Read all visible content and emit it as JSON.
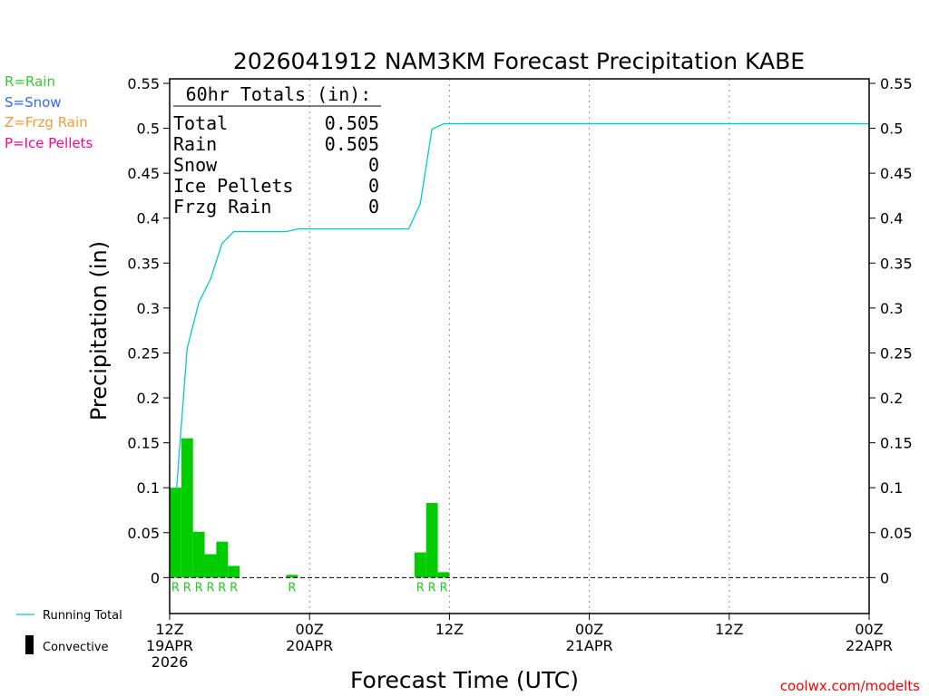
{
  "chart_data": {
    "type": "bar",
    "title": "2026041912 NAM3KM Forecast Precipitation KABE",
    "xlabel": "Forecast Time (UTC)",
    "ylabel": "Precipitation (in)",
    "ylim": [
      -0.04,
      0.555
    ],
    "y_ticks": [
      0,
      0.05,
      0.1,
      0.15,
      0.2,
      0.25,
      0.3,
      0.35,
      0.4,
      0.45,
      0.5,
      0.55
    ],
    "y_tick_labels": [
      "0",
      "0.05",
      "0.1",
      "0.15",
      "0.2",
      "0.25",
      "0.3",
      "0.35",
      "0.4",
      "0.45",
      "0.5",
      "0.55"
    ],
    "x_range_hours": [
      0,
      60
    ],
    "x_ticks": [
      {
        "hour": 0,
        "line1": "12Z",
        "line2": "19APR",
        "line3": "2026"
      },
      {
        "hour": 12,
        "line1": "00Z",
        "line2": "20APR",
        "line3": ""
      },
      {
        "hour": 24,
        "line1": "12Z",
        "line2": "",
        "line3": ""
      },
      {
        "hour": 36,
        "line1": "00Z",
        "line2": "21APR",
        "line3": ""
      },
      {
        "hour": 48,
        "line1": "12Z",
        "line2": "",
        "line3": ""
      },
      {
        "hour": 60,
        "line1": "00Z",
        "line2": "22APR",
        "line3": ""
      }
    ],
    "grid": "vertical dotted at 12-hour ticks",
    "series": [
      {
        "name": "Rain",
        "color": "#00cc00",
        "bars": [
          {
            "hour": 1,
            "value": 0.1
          },
          {
            "hour": 2,
            "value": 0.155
          },
          {
            "hour": 3,
            "value": 0.051
          },
          {
            "hour": 4,
            "value": 0.026
          },
          {
            "hour": 5,
            "value": 0.04
          },
          {
            "hour": 6,
            "value": 0.013
          },
          {
            "hour": 11,
            "value": 0.003
          },
          {
            "hour": 22,
            "value": 0.028
          },
          {
            "hour": 23,
            "value": 0.083
          },
          {
            "hour": 24,
            "value": 0.006
          }
        ]
      },
      {
        "name": "Running Total",
        "color": "#00cccc",
        "points": [
          {
            "hour": 0.6,
            "value": 0.1
          },
          {
            "hour": 1.5,
            "value": 0.255
          },
          {
            "hour": 2.5,
            "value": 0.306
          },
          {
            "hour": 3.5,
            "value": 0.332
          },
          {
            "hour": 4.5,
            "value": 0.372
          },
          {
            "hour": 5.5,
            "value": 0.385
          },
          {
            "hour": 10,
            "value": 0.385
          },
          {
            "hour": 11,
            "value": 0.388
          },
          {
            "hour": 20.5,
            "value": 0.388
          },
          {
            "hour": 21.5,
            "value": 0.416
          },
          {
            "hour": 22.5,
            "value": 0.499
          },
          {
            "hour": 23.5,
            "value": 0.505
          },
          {
            "hour": 60,
            "value": 0.505
          }
        ]
      }
    ],
    "type_markers": [
      {
        "hour": 1,
        "label": "R"
      },
      {
        "hour": 2,
        "label": "R"
      },
      {
        "hour": 3,
        "label": "R"
      },
      {
        "hour": 4,
        "label": "R"
      },
      {
        "hour": 5,
        "label": "R"
      },
      {
        "hour": 6,
        "label": "R"
      },
      {
        "hour": 11,
        "label": "R"
      },
      {
        "hour": 22,
        "label": "R"
      },
      {
        "hour": 23,
        "label": "R"
      },
      {
        "hour": 24,
        "label": "R"
      }
    ],
    "totals_box": {
      "heading": "60hr Totals (in):",
      "rows": [
        {
          "label": "Total",
          "value": "0.505"
        },
        {
          "label": "Rain",
          "value": "0.505"
        },
        {
          "label": "Snow",
          "value": "0"
        },
        {
          "label": "Ice Pellets",
          "value": "0"
        },
        {
          "label": "Frzg Rain",
          "value": "0"
        }
      ]
    },
    "type_legend": [
      {
        "text": "R=Rain",
        "color": "#33cc33"
      },
      {
        "text": "S=Snow",
        "color": "#3366ff"
      },
      {
        "text": "Z=Frzg Rain",
        "color": "#ff9933"
      },
      {
        "text": "P=Ice Pellets",
        "color": "#ff0099"
      }
    ],
    "line_legend": [
      {
        "text": "Running Total",
        "color": "#00cccc",
        "kind": "line"
      },
      {
        "text": "Convective",
        "color": "#000000",
        "kind": "bar"
      }
    ],
    "credit": "coolwx.com/modelts",
    "credit_color": "#ff0000"
  }
}
